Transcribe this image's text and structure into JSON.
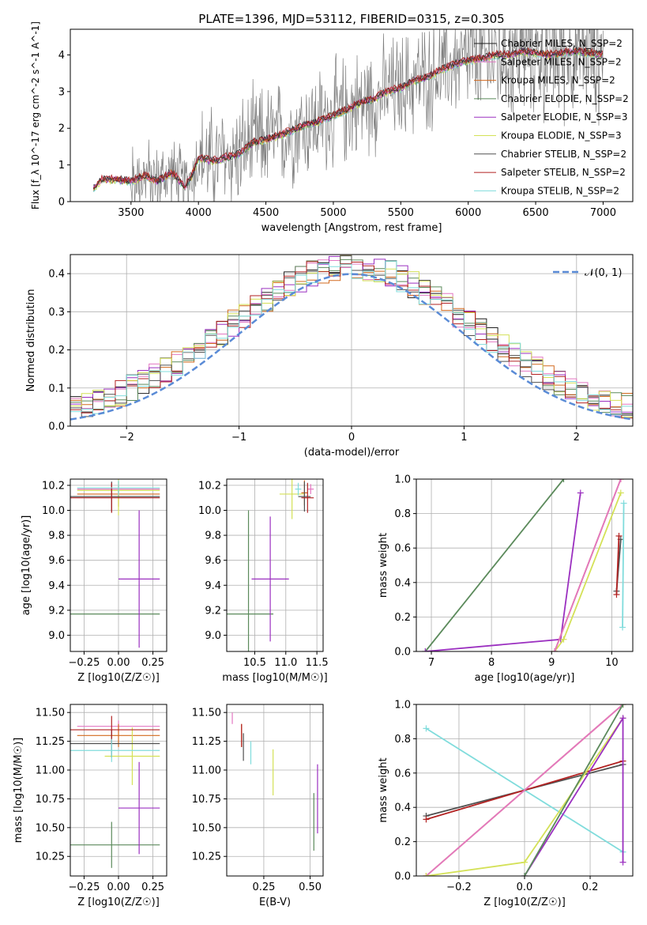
{
  "figure_title": "PLATE=1396, MJD=53112, FIBERID=0315, z=0.305",
  "colors": {
    "spectrum": "#808080",
    "chabrier_miles": "#1f1f1f",
    "salpeter_miles": "#e377c2",
    "kroupa_miles": "#d2691e",
    "chabrier_elodie": "#5b8a5b",
    "salpeter_elodie": "#9b30c0",
    "kroupa_elodie": "#d4e157",
    "chabrier_stelib": "#505050",
    "salpeter_stelib": "#b22222",
    "kroupa_stelib": "#80dcdc",
    "normal": "#5a8bd6"
  },
  "chart_data": [
    {
      "id": "spectrum",
      "type": "line",
      "title": "PLATE=1396, MJD=53112, FIBERID=0315, z=0.305",
      "xlabel": "wavelength [Angstrom, rest frame]",
      "ylabel": "Flux [f_λ 10^-17 erg cm^-2 s^-1 A^-1]",
      "xlim": [
        3050,
        7220
      ],
      "ylim": [
        0,
        4.7
      ],
      "xticks": [
        3500,
        4000,
        4500,
        5000,
        5500,
        6000,
        6500,
        7000
      ],
      "yticks": [
        0,
        1,
        2,
        3,
        4
      ],
      "legend_position": "top-right",
      "legend": [
        "Chabrier MILES, N_SSP=2",
        "Salpeter MILES, N_SSP=2",
        "Kroupa MILES, N_SSP=2",
        "Chabrier ELODIE, N_SSP=2",
        "Salpeter ELODIE, N_SSP=3",
        "Kroupa ELODIE, N_SSP=3",
        "Chabrier STELIB, N_SSP=2",
        "Salpeter STELIB, N_SSP=2",
        "Kroupa STELIB, N_SSP=2"
      ],
      "model_curve": {
        "x": [
          3220,
          3280,
          3400,
          3500,
          3600,
          3700,
          3800,
          3900,
          3950,
          4000,
          4100,
          4200,
          4300,
          4400,
          4500,
          4600,
          4700,
          4800,
          4900,
          5000,
          5100,
          5200,
          5300,
          5400,
          5500,
          5600,
          5700,
          5800,
          5900,
          6000,
          6100,
          6200,
          6300,
          6400,
          6500,
          6600,
          6700,
          6800,
          6900,
          7000
        ],
        "y": [
          0.35,
          0.6,
          0.6,
          0.55,
          0.7,
          0.55,
          0.8,
          0.4,
          0.7,
          1.2,
          1.1,
          1.2,
          1.3,
          1.6,
          1.7,
          1.8,
          1.95,
          2.1,
          2.2,
          2.35,
          2.5,
          2.7,
          2.8,
          3.0,
          3.1,
          3.3,
          3.4,
          3.6,
          3.75,
          3.85,
          3.9,
          4.0,
          4.0,
          4.1,
          4.05,
          4.0,
          4.05,
          4.1,
          4.05,
          4.0
        ]
      }
    },
    {
      "id": "residuals",
      "type": "histogram",
      "xlabel": "(data-model)/error",
      "ylabel": "Normed distribution",
      "xlim": [
        -2.5,
        2.5
      ],
      "ylim": [
        0,
        0.45
      ],
      "xticks": [
        -2,
        -1,
        0,
        1,
        2
      ],
      "yticks": [
        0.0,
        0.1,
        0.2,
        0.3,
        0.4
      ],
      "grid": true,
      "legend_position": "top-right",
      "legend": [
        "𝒩(0, 1)"
      ],
      "bin_width": 0.1
    },
    {
      "id": "age_vs_Z",
      "type": "errorbar",
      "xlabel": "Z [log10(Z/Z☉)]",
      "ylabel": "age  [log10(age/yr)]",
      "xlim": [
        -0.35,
        0.35
      ],
      "ylim": [
        8.87,
        10.25
      ],
      "xticks": [
        -0.25,
        0.0,
        0.25
      ],
      "yticks": [
        9.0,
        9.2,
        9.4,
        9.6,
        9.8,
        10.0,
        10.2
      ],
      "grid": true,
      "points": [
        {
          "series": "salpeter_miles",
          "x": 0.0,
          "y": 10.17,
          "xerr": 0.3,
          "yerr": 0.03
        },
        {
          "series": "kroupa_miles",
          "x": 0.0,
          "y": 10.13,
          "xerr": 0.3,
          "yerr": 0.1
        },
        {
          "series": "chabrier_elodie",
          "x": -0.05,
          "y": 9.17,
          "xerr": 0.35,
          "yerr": 0.0
        },
        {
          "series": "salpeter_elodie",
          "x": 0.15,
          "y": 9.45,
          "xerr": 0.15,
          "yerr": 0.55
        },
        {
          "series": "kroupa_elodie",
          "x": 0.0,
          "y": 10.16,
          "xerr": 0.3,
          "yerr": 0.2
        },
        {
          "series": "chabrier_stelib",
          "x": -0.05,
          "y": 10.11,
          "xerr": 0.35,
          "yerr": 0.12
        },
        {
          "series": "salpeter_stelib",
          "x": -0.05,
          "y": 10.1,
          "xerr": 0.35,
          "yerr": 0.12
        },
        {
          "series": "kroupa_stelib",
          "x": 0.0,
          "y": 10.18,
          "xerr": 0.3,
          "yerr": 0.06
        }
      ]
    },
    {
      "id": "age_vs_mass",
      "type": "errorbar",
      "xlabel": "mass [log10(M/M☉)]",
      "ylabel": "",
      "xlim": [
        10.05,
        11.6
      ],
      "ylim": [
        8.87,
        10.25
      ],
      "xticks": [
        10.5,
        11.0,
        11.5
      ],
      "yticks": [
        9.0,
        9.2,
        9.4,
        9.6,
        9.8,
        10.0,
        10.2
      ],
      "grid": true,
      "points": [
        {
          "series": "salpeter_miles",
          "x": 11.4,
          "y": 10.17,
          "xerr": 0.05,
          "yerr": 0.04
        },
        {
          "series": "kroupa_miles",
          "x": 11.3,
          "y": 10.14,
          "xerr": 0.05,
          "yerr": 0.1
        },
        {
          "series": "chabrier_elodie",
          "x": 10.4,
          "y": 9.17,
          "xerr": 0.4,
          "yerr": 0.83
        },
        {
          "series": "salpeter_elodie",
          "x": 10.75,
          "y": 9.45,
          "xerr": 0.3,
          "yerr": 0.5
        },
        {
          "series": "kroupa_elodie",
          "x": 11.1,
          "y": 10.13,
          "xerr": 0.2,
          "yerr": 0.2
        },
        {
          "series": "chabrier_stelib",
          "x": 11.3,
          "y": 10.11,
          "xerr": 0.1,
          "yerr": 0.12
        },
        {
          "series": "salpeter_stelib",
          "x": 11.35,
          "y": 10.1,
          "xerr": 0.1,
          "yerr": 0.12
        },
        {
          "series": "kroupa_stelib",
          "x": 11.2,
          "y": 10.17,
          "xerr": 0.05,
          "yerr": 0.05
        }
      ]
    },
    {
      "id": "massweight_vs_age",
      "type": "line",
      "xlabel": "age  [log10(age/yr)]",
      "ylabel": "mass weight",
      "xlim": [
        6.75,
        10.35
      ],
      "ylim": [
        0,
        1
      ],
      "xticks": [
        7,
        8,
        9,
        10
      ],
      "yticks": [
        0.0,
        0.2,
        0.4,
        0.6,
        0.8,
        1.0
      ],
      "grid": true,
      "series": [
        {
          "key": "chabrier_elodie",
          "x": [
            6.9,
            9.2
          ],
          "y": [
            0.0,
            1.0
          ]
        },
        {
          "key": "salpeter_elodie",
          "x": [
            6.9,
            9.15,
            9.48
          ],
          "y": [
            0.0,
            0.07,
            0.92
          ]
        },
        {
          "key": "kroupa_elodie",
          "x": [
            9.05,
            9.2,
            10.15
          ],
          "y": [
            0.0,
            0.07,
            0.92
          ]
        },
        {
          "key": "kroupa_miles",
          "x": [
            9.05,
            10.15
          ],
          "y": [
            0.0,
            1.0
          ]
        },
        {
          "key": "salpeter_miles",
          "x": [
            9.05,
            10.15
          ],
          "y": [
            0.0,
            1.0
          ]
        },
        {
          "key": "chabrier_stelib",
          "x": [
            10.08,
            10.15
          ],
          "y": [
            0.35,
            0.65
          ]
        },
        {
          "key": "salpeter_stelib",
          "x": [
            10.08,
            10.12
          ],
          "y": [
            0.33,
            0.67
          ]
        },
        {
          "key": "kroupa_stelib",
          "x": [
            10.18,
            10.2
          ],
          "y": [
            0.14,
            0.86
          ]
        }
      ]
    },
    {
      "id": "mass_vs_Z",
      "type": "errorbar",
      "xlabel": "Z [log10(Z/Z☉)]",
      "ylabel": "mass [log10(M/M☉)]",
      "xlim": [
        -0.35,
        0.35
      ],
      "ylim": [
        10.08,
        11.57
      ],
      "xticks": [
        -0.25,
        0.0,
        0.25
      ],
      "yticks": [
        10.25,
        10.5,
        10.75,
        11.0,
        11.25,
        11.5
      ],
      "grid": true,
      "points": [
        {
          "series": "salpeter_miles",
          "x": 0.0,
          "y": 11.38,
          "xerr": 0.3,
          "yerr": 0.05
        },
        {
          "series": "kroupa_miles",
          "x": 0.0,
          "y": 11.3,
          "xerr": 0.3,
          "yerr": 0.1
        },
        {
          "series": "chabrier_elodie",
          "x": -0.05,
          "y": 10.35,
          "xerr": 0.35,
          "yerr": 0.2
        },
        {
          "series": "salpeter_elodie",
          "x": 0.15,
          "y": 10.67,
          "xerr": 0.15,
          "yerr": 0.4
        },
        {
          "series": "kroupa_elodie",
          "x": 0.1,
          "y": 11.12,
          "xerr": 0.2,
          "yerr": 0.25
        },
        {
          "series": "chabrier_stelib",
          "x": -0.05,
          "y": 11.23,
          "xerr": 0.35,
          "yerr": 0.12
        },
        {
          "series": "salpeter_stelib",
          "x": -0.05,
          "y": 11.35,
          "xerr": 0.35,
          "yerr": 0.12
        },
        {
          "series": "kroupa_stelib",
          "x": -0.05,
          "y": 11.17,
          "xerr": 0.35,
          "yerr": 0.1
        }
      ]
    },
    {
      "id": "mass_vs_EBV",
      "type": "errorbar",
      "xlabel": "E(B-V)",
      "ylabel": "",
      "xlim": [
        0.05,
        0.57
      ],
      "ylim": [
        10.08,
        11.57
      ],
      "xticks": [
        0.25,
        0.5
      ],
      "yticks": [
        10.25,
        10.5,
        10.75,
        11.0,
        11.25,
        11.5
      ],
      "grid": true,
      "points": [
        {
          "series": "salpeter_miles",
          "x": 0.08,
          "y": 11.45,
          "xerr": 0,
          "yerr": 0.05
        },
        {
          "series": "kroupa_miles",
          "x": 0.13,
          "y": 11.3,
          "xerr": 0,
          "yerr": 0.1
        },
        {
          "series": "chabrier_elodie",
          "x": 0.52,
          "y": 10.55,
          "xerr": 0,
          "yerr": 0.25
        },
        {
          "series": "salpeter_elodie",
          "x": 0.54,
          "y": 10.75,
          "xerr": 0,
          "yerr": 0.3
        },
        {
          "series": "kroupa_elodie",
          "x": 0.3,
          "y": 10.98,
          "xerr": 0,
          "yerr": 0.2
        },
        {
          "series": "chabrier_stelib",
          "x": 0.14,
          "y": 11.2,
          "xerr": 0,
          "yerr": 0.12
        },
        {
          "series": "salpeter_stelib",
          "x": 0.13,
          "y": 11.3,
          "xerr": 0,
          "yerr": 0.1
        },
        {
          "series": "kroupa_stelib",
          "x": 0.18,
          "y": 11.15,
          "xerr": 0,
          "yerr": 0.1
        }
      ]
    },
    {
      "id": "massweight_vs_Z",
      "type": "line",
      "xlabel": "Z [log10(Z/Z☉)]",
      "ylabel": "mass weight",
      "xlim": [
        -0.33,
        0.33
      ],
      "ylim": [
        0,
        1
      ],
      "xticks": [
        -0.2,
        0.0,
        0.2
      ],
      "yticks": [
        0.0,
        0.2,
        0.4,
        0.6,
        0.8,
        1.0
      ],
      "grid": true,
      "series": [
        {
          "key": "kroupa_stelib",
          "x": [
            -0.3,
            0.3
          ],
          "y": [
            0.86,
            0.14
          ]
        },
        {
          "key": "chabrier_stelib",
          "x": [
            -0.3,
            0.3
          ],
          "y": [
            0.35,
            0.65
          ]
        },
        {
          "key": "salpeter_stelib",
          "x": [
            -0.3,
            0.3
          ],
          "y": [
            0.33,
            0.67
          ]
        },
        {
          "key": "kroupa_miles",
          "x": [
            -0.3,
            0.3
          ],
          "y": [
            0.0,
            1.0
          ]
        },
        {
          "key": "salpeter_miles",
          "x": [
            -0.3,
            0.3
          ],
          "y": [
            0.0,
            1.0
          ]
        },
        {
          "key": "kroupa_elodie",
          "x": [
            -0.3,
            0.0,
            0.3
          ],
          "y": [
            0.0,
            0.08,
            0.92
          ]
        },
        {
          "key": "salpeter_elodie",
          "x": [
            0.0,
            0.3,
            0.3
          ],
          "y": [
            0.0,
            0.92,
            0.08
          ]
        },
        {
          "key": "chabrier_elodie",
          "x": [
            0.0,
            0.3
          ],
          "y": [
            0.0,
            1.0
          ]
        }
      ]
    }
  ]
}
